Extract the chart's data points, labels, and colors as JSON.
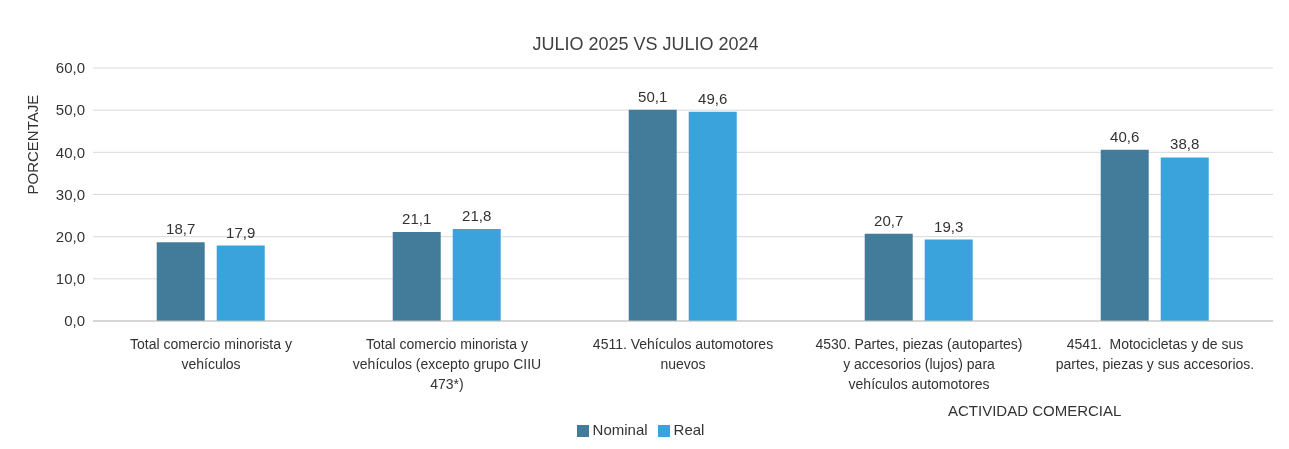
{
  "chart_data": {
    "type": "bar",
    "title": "JULIO 2025 VS JULIO 2024",
    "xlabel": "ACTIVIDAD COMERCIAL",
    "ylabel": "PORCENTAJE",
    "categories": [
      "Total comercio minorista y vehículos",
      "Total comercio minorista y vehículos (excepto grupo CIIU 473*)",
      "4511. Vehículos automotores nuevos",
      "4530. Partes, piezas (autopartes) y accesorios (lujos) para vehículos automotores",
      "4541.  Motocicletas y de sus partes, piezas y sus accesorios."
    ],
    "series": [
      {
        "name": "Nominal",
        "color": "#437c9a",
        "values": [
          18.7,
          21.1,
          50.1,
          20.7,
          40.6
        ],
        "value_labels": [
          "18,7",
          "21,1",
          "50,1",
          "20,7",
          "40,6"
        ]
      },
      {
        "name": "Real",
        "color": "#3aa3dc",
        "values": [
          17.9,
          21.8,
          49.6,
          19.3,
          38.8
        ],
        "value_labels": [
          "17,9",
          "21,8",
          "49,6",
          "19,3",
          "38,8"
        ]
      }
    ],
    "ylim": [
      0,
      60
    ],
    "yticks": [
      {
        "value": 0,
        "label": "0,0"
      },
      {
        "value": 10,
        "label": "10,0"
      },
      {
        "value": 20,
        "label": "20,0"
      },
      {
        "value": 30,
        "label": "30,0"
      },
      {
        "value": 40,
        "label": "40,0"
      },
      {
        "value": 50,
        "label": "50,0"
      },
      {
        "value": 60,
        "label": "60,0"
      }
    ],
    "grid": "y",
    "legend": "bottom"
  }
}
